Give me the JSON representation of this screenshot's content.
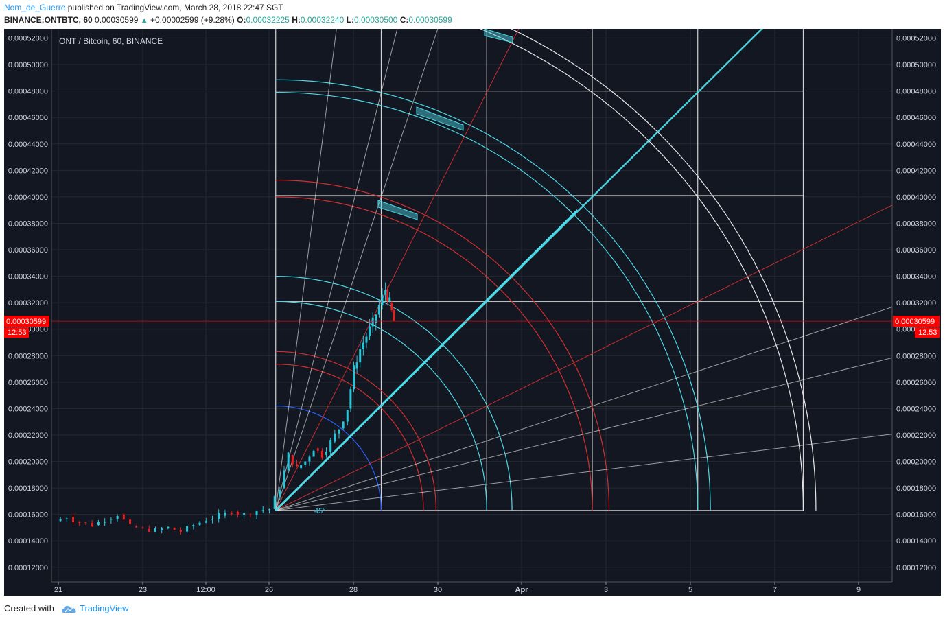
{
  "header": {
    "user": "Nom_de_Guerre",
    "published_on": "published on TradingView.com, March 28, 2018 22:47 SGT",
    "symbol": "BINANCE:ONTBTC, 60",
    "last": "0.00030599",
    "change_arrow": "▲",
    "change": "+0.00002599 (+9.28%)",
    "o_label": "O:",
    "o_value": "0.00032225",
    "h_label": "H:",
    "h_value": "0.00032240",
    "l_label": "L:",
    "l_value": "0.00030500",
    "c_label": "C:",
    "c_value": "0.00030599"
  },
  "footer": {
    "created_with": "Created with",
    "brand": "TradingView",
    "logo_icon": "tradingview-cloud-icon"
  },
  "colors": {
    "background": "#131722",
    "grid": "#242833",
    "up": "#26c6da",
    "down": "#e91e1e",
    "cyan": "#4dd9e6",
    "red": "#d32f2f",
    "white": "#e6e6e6",
    "blue": "#2962ff",
    "price_tag": "#ff0000"
  },
  "chart_data": {
    "type": "candlestick",
    "title": "ONT / Bitcoin, 60, BINANCE",
    "x_ticks": [
      "21",
      "23",
      "12:00",
      "26",
      "28",
      "30",
      "Apr",
      "3",
      "5",
      "7",
      "9"
    ],
    "y_ticks": [
      "0.00012000",
      "0.00014000",
      "0.00016000",
      "0.00018000",
      "0.00020000",
      "0.00022000",
      "0.00024000",
      "0.00026000",
      "0.00028000",
      "0.00030000",
      "0.00032000",
      "0.00034000",
      "0.00036000",
      "0.00038000",
      "0.00040000",
      "0.00042000",
      "0.00044000",
      "0.00046000",
      "0.00048000",
      "0.00050000",
      "0.00052000"
    ],
    "ylim": [
      0.000109,
      0.000527
    ],
    "last_price": "0.00030599",
    "countdown": "12:53",
    "angle_label": "45°",
    "close_path_days": [
      [
        20.9,
        0.000155
      ],
      [
        21.2,
        0.000158
      ],
      [
        21.5,
        0.000154
      ],
      [
        21.8,
        0.000152
      ],
      [
        22.1,
        0.000156
      ],
      [
        22.4,
        0.00016
      ],
      [
        22.7,
        0.000151
      ],
      [
        23.0,
        0.000149
      ],
      [
        23.3,
        0.000148
      ],
      [
        23.6,
        0.00015
      ],
      [
        23.9,
        0.000147
      ],
      [
        24.2,
        0.000152
      ],
      [
        24.5,
        0.000156
      ],
      [
        24.8,
        0.000159
      ],
      [
        25.1,
        0.000162
      ],
      [
        25.4,
        0.00016
      ],
      [
        25.7,
        0.000163
      ],
      [
        26.0,
        0.000164
      ],
      [
        26.25,
        0.00018
      ],
      [
        26.45,
        0.000205
      ],
      [
        26.65,
        0.000195
      ],
      [
        26.85,
        0.0002
      ],
      [
        27.05,
        0.00021
      ],
      [
        27.25,
        0.000205
      ],
      [
        27.45,
        0.000215
      ],
      [
        27.65,
        0.000225
      ],
      [
        27.85,
        0.00024
      ],
      [
        28.0,
        0.00027
      ],
      [
        28.15,
        0.000285
      ],
      [
        28.3,
        0.000295
      ],
      [
        28.45,
        0.000305
      ],
      [
        28.6,
        0.000318
      ],
      [
        28.75,
        0.00033
      ],
      [
        28.85,
        0.00032
      ],
      [
        28.95,
        0.000306
      ]
    ],
    "grid_price_levels": [
      0.000163,
      0.000242,
      0.000321,
      0.000401,
      0.00048
    ],
    "grid_day_levels": [
      26.15,
      28.65,
      31.15,
      33.65,
      36.15,
      38.65
    ],
    "fan_origin": [
      26.15,
      0.000163
    ],
    "arcs": [
      {
        "color": "blue",
        "radius_days": 2.5
      },
      {
        "color": "red",
        "radius_days": 3.5
      },
      {
        "color": "red",
        "radius_days": 3.8
      },
      {
        "color": "cyan",
        "radius_days": 5.0
      },
      {
        "color": "cyan",
        "radius_days": 5.6
      },
      {
        "color": "red",
        "radius_days": 7.5
      },
      {
        "color": "red",
        "radius_days": 7.9
      },
      {
        "color": "cyan",
        "radius_days": 10.0
      },
      {
        "color": "cyan",
        "radius_days": 10.3
      },
      {
        "color": "white",
        "radius_days": 12.5
      },
      {
        "color": "white",
        "radius_days": 12.8
      }
    ],
    "fan_lines": [
      {
        "color": "cyan",
        "ratio": 1,
        "width": 2.5
      },
      {
        "color": "red",
        "ratio": 0.5
      },
      {
        "color": "red",
        "ratio": 2
      },
      {
        "color": "white",
        "ratio": 0.333
      },
      {
        "color": "white",
        "ratio": 0.25
      },
      {
        "color": "white",
        "ratio": 0.125
      },
      {
        "color": "white",
        "ratio": 3
      },
      {
        "color": "white",
        "ratio": 4
      },
      {
        "color": "white",
        "ratio": 8
      }
    ]
  }
}
